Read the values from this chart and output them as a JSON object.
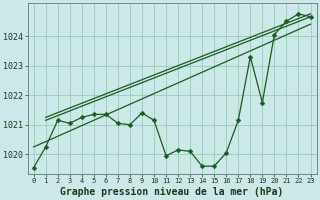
{
  "title": "Graphe pression niveau de la mer (hPa)",
  "background_color": "#cce8e8",
  "grid_color": "#99ccbb",
  "line_color": "#1a5c1a",
  "x_values": [
    0,
    1,
    2,
    3,
    4,
    5,
    6,
    7,
    8,
    9,
    10,
    11,
    12,
    13,
    14,
    15,
    16,
    17,
    18,
    19,
    20,
    21,
    22,
    23
  ],
  "main_line": [
    1019.55,
    1020.25,
    1021.15,
    1021.05,
    1021.25,
    1021.35,
    1021.35,
    1021.05,
    1021.0,
    1021.4,
    1021.15,
    1019.95,
    1020.15,
    1020.1,
    1019.6,
    1019.6,
    1020.05,
    1021.15,
    1023.3,
    1021.75,
    1024.05,
    1024.5,
    1024.75,
    1024.65
  ],
  "trend_line1": [
    [
      1,
      23
    ],
    [
      1021.15,
      1024.65
    ]
  ],
  "trend_line2": [
    [
      1,
      23
    ],
    [
      1021.25,
      1024.75
    ]
  ],
  "trend_line3": [
    [
      0,
      23
    ],
    [
      1020.25,
      1024.4
    ]
  ],
  "ylim": [
    1019.35,
    1025.1
  ],
  "yticks": [
    1020,
    1021,
    1022,
    1023,
    1024
  ],
  "xticks": [
    0,
    1,
    2,
    3,
    4,
    5,
    6,
    7,
    8,
    9,
    10,
    11,
    12,
    13,
    14,
    15,
    16,
    17,
    18,
    19,
    20,
    21,
    22,
    23
  ],
  "markersize": 2.5,
  "linewidth": 0.9,
  "xlabel_fontsize": 7.0,
  "ytick_fontsize": 6.0,
  "xtick_fontsize": 5.0
}
